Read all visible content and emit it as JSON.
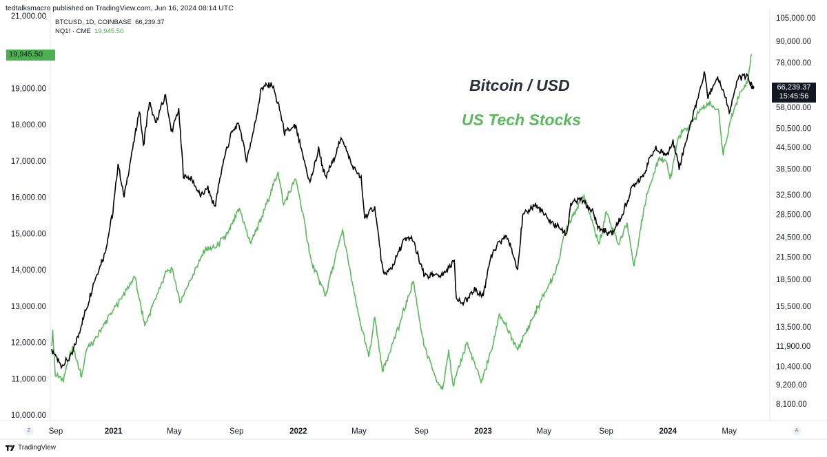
{
  "header": {
    "published": "tedtalksmacro published on TradingView.com, Jun 16, 2024 08:14 UTC"
  },
  "legend": {
    "btc_label": "BTCUSD, 1D, COINBASE",
    "btc_value": "66,239.37",
    "nq_label": "NQ1! · CME",
    "nq_value": "19,945.50"
  },
  "badges": {
    "left_value": "19,945.50",
    "right_value": "66,239.37",
    "right_countdown": "15:45:56"
  },
  "annotations": {
    "btc": "Bitcoin / USD",
    "tech": "US Tech Stocks"
  },
  "footer": {
    "brand": "TradingView",
    "left_button": "Z",
    "right_button": "A"
  },
  "colors": {
    "btc": "#000000",
    "nq": "#5cb85c",
    "grid": "#e0e3eb",
    "badge_green": "#4caf50",
    "badge_dark": "#131722"
  },
  "chart_data": {
    "type": "line",
    "title": "",
    "left_axis": {
      "series": "NQ1! · CME",
      "scale": "linear",
      "range": [
        10000,
        21000
      ],
      "ticks": [
        "21,000.00",
        "19,000.00",
        "18,000.00",
        "17,000.00",
        "16,000.00",
        "15,000.00",
        "14,000.00",
        "13,000.00",
        "12,000.00",
        "11,000.00",
        "10,000.00"
      ]
    },
    "right_axis": {
      "series": "BTCUSD, 1D, COINBASE",
      "scale": "log",
      "ticks": [
        "105,000.00",
        "90,000.00",
        "78,000.00",
        "58,000.00",
        "50,500.00",
        "44,500.00",
        "38,500.00",
        "32,500.00",
        "28,500.00",
        "24,500.00",
        "21,500.00",
        "18,500.00",
        "15,500.00",
        "13,500.00",
        "11,900.00",
        "10,400.00",
        "9,200.00",
        "8,100.00"
      ]
    },
    "x_axis": {
      "range": [
        "2020-09-01",
        "2024-06-16"
      ],
      "ticks": [
        {
          "label": "Sep",
          "date": "2020-09-01",
          "year": false
        },
        {
          "label": "2021",
          "date": "2021-01-01",
          "year": true
        },
        {
          "label": "May",
          "date": "2021-05-01",
          "year": false
        },
        {
          "label": "Sep",
          "date": "2021-09-01",
          "year": false
        },
        {
          "label": "2022",
          "date": "2022-01-01",
          "year": true
        },
        {
          "label": "May",
          "date": "2022-05-01",
          "year": false
        },
        {
          "label": "Sep",
          "date": "2022-09-01",
          "year": false
        },
        {
          "label": "2023",
          "date": "2023-01-01",
          "year": true
        },
        {
          "label": "May",
          "date": "2023-05-01",
          "year": false
        },
        {
          "label": "Sep",
          "date": "2023-09-01",
          "year": false
        },
        {
          "label": "2024",
          "date": "2024-01-01",
          "year": true
        },
        {
          "label": "May",
          "date": "2024-05-01",
          "year": false
        }
      ]
    },
    "series": [
      {
        "name": "BTCUSD, 1D, COINBASE",
        "axis": "right",
        "last": 66239.37,
        "points": [
          [
            "2020-09-01",
            11500
          ],
          [
            "2020-09-20",
            10500
          ],
          [
            "2020-10-10",
            11100
          ],
          [
            "2020-10-25",
            13000
          ],
          [
            "2020-11-10",
            15500
          ],
          [
            "2020-11-25",
            18500
          ],
          [
            "2020-12-15",
            22000
          ],
          [
            "2020-12-31",
            29000
          ],
          [
            "2021-01-10",
            40000
          ],
          [
            "2021-01-22",
            32000
          ],
          [
            "2021-02-08",
            44000
          ],
          [
            "2021-02-21",
            57000
          ],
          [
            "2021-03-01",
            45000
          ],
          [
            "2021-03-13",
            60000
          ],
          [
            "2021-03-25",
            52000
          ],
          [
            "2021-04-14",
            63000
          ],
          [
            "2021-04-25",
            49000
          ],
          [
            "2021-05-10",
            57000
          ],
          [
            "2021-05-19",
            37000
          ],
          [
            "2021-06-05",
            36000
          ],
          [
            "2021-06-22",
            32000
          ],
          [
            "2021-07-05",
            34000
          ],
          [
            "2021-07-20",
            30000
          ],
          [
            "2021-08-05",
            40000
          ],
          [
            "2021-08-22",
            49000
          ],
          [
            "2021-09-06",
            52000
          ],
          [
            "2021-09-21",
            41000
          ],
          [
            "2021-10-05",
            50000
          ],
          [
            "2021-10-20",
            66000
          ],
          [
            "2021-11-10",
            68000
          ],
          [
            "2021-11-25",
            57000
          ],
          [
            "2021-12-05",
            49000
          ],
          [
            "2021-12-27",
            51000
          ],
          [
            "2022-01-10",
            42000
          ],
          [
            "2022-01-24",
            35000
          ],
          [
            "2022-02-10",
            44000
          ],
          [
            "2022-02-24",
            36000
          ],
          [
            "2022-03-28",
            47500
          ],
          [
            "2022-04-15",
            40000
          ],
          [
            "2022-05-05",
            36000
          ],
          [
            "2022-05-12",
            28000
          ],
          [
            "2022-06-01",
            30000
          ],
          [
            "2022-06-18",
            19000
          ],
          [
            "2022-07-05",
            20000
          ],
          [
            "2022-07-28",
            24000
          ],
          [
            "2022-08-14",
            24400
          ],
          [
            "2022-09-06",
            19000
          ],
          [
            "2022-09-25",
            19000
          ],
          [
            "2022-10-15",
            19200
          ],
          [
            "2022-11-05",
            21000
          ],
          [
            "2022-11-09",
            16500
          ],
          [
            "2022-11-21",
            15700
          ],
          [
            "2022-12-15",
            17300
          ],
          [
            "2023-01-01",
            16600
          ],
          [
            "2023-01-14",
            21000
          ],
          [
            "2023-02-01",
            23500
          ],
          [
            "2023-02-16",
            24800
          ],
          [
            "2023-03-10",
            20000
          ],
          [
            "2023-03-20",
            28000
          ],
          [
            "2023-04-13",
            30500
          ],
          [
            "2023-05-10",
            27500
          ],
          [
            "2023-06-15",
            25000
          ],
          [
            "2023-06-23",
            30500
          ],
          [
            "2023-07-13",
            31500
          ],
          [
            "2023-08-05",
            29000
          ],
          [
            "2023-08-17",
            26000
          ],
          [
            "2023-09-11",
            25000
          ],
          [
            "2023-10-01",
            28000
          ],
          [
            "2023-10-24",
            34500
          ],
          [
            "2023-11-15",
            37500
          ],
          [
            "2023-12-05",
            44000
          ],
          [
            "2023-12-31",
            42300
          ],
          [
            "2024-01-11",
            46500
          ],
          [
            "2024-01-23",
            39000
          ],
          [
            "2024-02-15",
            52000
          ],
          [
            "2024-03-05",
            66000
          ],
          [
            "2024-03-14",
            73000
          ],
          [
            "2024-03-20",
            62000
          ],
          [
            "2024-04-08",
            71500
          ],
          [
            "2024-04-20",
            64000
          ],
          [
            "2024-05-01",
            57000
          ],
          [
            "2024-05-20",
            71000
          ],
          [
            "2024-06-06",
            71000
          ],
          [
            "2024-06-16",
            66239.37
          ]
        ]
      },
      {
        "name": "NQ1! · CME",
        "axis": "left",
        "last": 19945.5,
        "points": [
          [
            "2020-09-01",
            11900
          ],
          [
            "2020-09-03",
            12350
          ],
          [
            "2020-09-08",
            11100
          ],
          [
            "2020-09-23",
            10950
          ],
          [
            "2020-10-12",
            11900
          ],
          [
            "2020-10-30",
            11050
          ],
          [
            "2020-11-09",
            11800
          ],
          [
            "2020-11-20",
            11950
          ],
          [
            "2020-12-10",
            12400
          ],
          [
            "2020-12-31",
            12880
          ],
          [
            "2021-01-20",
            13300
          ],
          [
            "2021-02-12",
            13800
          ],
          [
            "2021-03-04",
            12450
          ],
          [
            "2021-03-19",
            13000
          ],
          [
            "2021-04-15",
            13950
          ],
          [
            "2021-04-28",
            14000
          ],
          [
            "2021-05-12",
            13100
          ],
          [
            "2021-06-01",
            13700
          ],
          [
            "2021-07-01",
            14550
          ],
          [
            "2021-07-20",
            14600
          ],
          [
            "2021-08-15",
            15000
          ],
          [
            "2021-09-07",
            15700
          ],
          [
            "2021-09-28",
            14750
          ],
          [
            "2021-10-20",
            15400
          ],
          [
            "2021-11-22",
            16700
          ],
          [
            "2021-12-03",
            15800
          ],
          [
            "2021-12-27",
            16500
          ],
          [
            "2022-01-05",
            15900
          ],
          [
            "2022-01-27",
            14200
          ],
          [
            "2022-02-24",
            13300
          ],
          [
            "2022-03-29",
            15100
          ],
          [
            "2022-04-26",
            13000
          ],
          [
            "2022-05-20",
            11600
          ],
          [
            "2022-06-01",
            12700
          ],
          [
            "2022-06-16",
            11200
          ],
          [
            "2022-07-20",
            12500
          ],
          [
            "2022-08-16",
            13700
          ],
          [
            "2022-09-06",
            11900
          ],
          [
            "2022-09-30",
            11000
          ],
          [
            "2022-10-13",
            10700
          ],
          [
            "2022-10-25",
            11800
          ],
          [
            "2022-11-03",
            10800
          ],
          [
            "2022-11-30",
            12000
          ],
          [
            "2022-12-28",
            10900
          ],
          [
            "2023-01-20",
            11900
          ],
          [
            "2023-02-02",
            12800
          ],
          [
            "2023-03-10",
            11800
          ],
          [
            "2023-04-20",
            13000
          ],
          [
            "2023-05-25",
            14000
          ],
          [
            "2023-06-15",
            15200
          ],
          [
            "2023-07-19",
            16050
          ],
          [
            "2023-08-18",
            14700
          ],
          [
            "2023-09-01",
            15600
          ],
          [
            "2023-09-26",
            14700
          ],
          [
            "2023-10-12",
            15300
          ],
          [
            "2023-10-26",
            14100
          ],
          [
            "2023-11-20",
            16100
          ],
          [
            "2023-12-15",
            17100
          ],
          [
            "2023-12-28",
            17000
          ],
          [
            "2024-01-05",
            16500
          ],
          [
            "2024-01-23",
            17700
          ],
          [
            "2024-02-15",
            18000
          ],
          [
            "2024-03-07",
            18450
          ],
          [
            "2024-03-21",
            18600
          ],
          [
            "2024-04-10",
            18400
          ],
          [
            "2024-04-19",
            17150
          ],
          [
            "2024-05-03",
            18100
          ],
          [
            "2024-05-22",
            18900
          ],
          [
            "2024-06-05",
            19150
          ],
          [
            "2024-06-14",
            19945.5
          ]
        ]
      }
    ]
  }
}
